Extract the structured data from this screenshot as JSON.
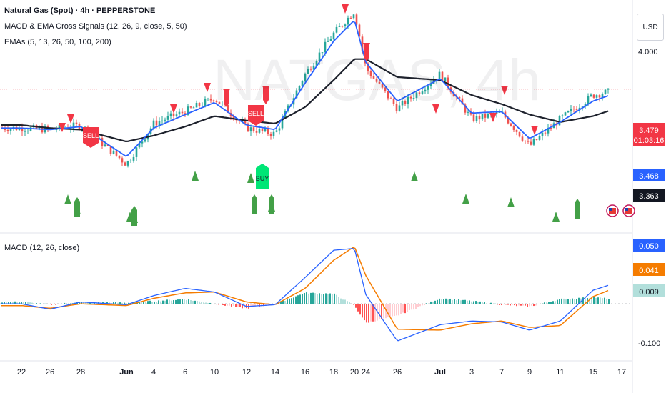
{
  "header": {
    "symbol_title": "Natural Gas (Spot) · 4h · PEPPERSTONE",
    "indicator_macd_ema": "MACD & EMA Cross Signals (12, 26, 9, close, 5, 50)",
    "indicator_emas": "EMAs (5, 13, 26, 50, 100, 200)",
    "watermark": "NATGAS, 4h",
    "currency_button": "USD"
  },
  "price_axis": {
    "top_label": "4.000",
    "current_price": "3.479",
    "countdown": "01:03:16",
    "ema_fast_value": "3.468",
    "ema_slow_value": "3.363"
  },
  "macd_panel": {
    "title": "MACD (12, 26, close)",
    "macd_value": "0.050",
    "signal_value": "0.041",
    "hist_value": "0.009",
    "bottom_label": "-0.100"
  },
  "time_axis": {
    "labels": [
      "22",
      "26",
      "28",
      "Jun",
      "4",
      "6",
      "10",
      "12",
      "14",
      "16",
      "18",
      "20",
      "24",
      "26",
      "Jul",
      "3",
      "7",
      "9",
      "11",
      "15",
      "17"
    ]
  },
  "signals": {
    "sell_label": "SELL",
    "buy_label": "BUY"
  },
  "colors": {
    "up": "#26a69a",
    "down": "#ef5350",
    "ema_fast": "#2962ff",
    "ema_slow": "#1e222d",
    "macd": "#2962ff",
    "signal": "#f57c00",
    "sell_marker": "#f23645",
    "buy_marker": "#43a047",
    "buy_box": "#00e676"
  },
  "chart_data": [
    {
      "type": "line",
      "title": "Natural Gas (Spot) · 4h · PEPPERSTONE",
      "x": [
        "22",
        "26",
        "28",
        "Jun",
        "4",
        "6",
        "10",
        "12",
        "14",
        "16",
        "18",
        "20",
        "24",
        "26",
        "Jul",
        "3",
        "7",
        "9",
        "11",
        "15",
        "17"
      ],
      "ylim": [
        2.55,
        4.05
      ],
      "series": [
        {
          "name": "close",
          "values": [
            3.22,
            3.21,
            3.24,
            2.98,
            3.25,
            3.33,
            3.42,
            3.22,
            3.18,
            3.58,
            3.85,
            4.0,
            3.62,
            3.35,
            3.58,
            3.28,
            3.32,
            3.1,
            3.28,
            3.44,
            3.48
          ]
        },
        {
          "name": "ema_fast",
          "values": [
            3.22,
            3.21,
            3.23,
            3.03,
            3.22,
            3.31,
            3.39,
            3.24,
            3.21,
            3.52,
            3.8,
            3.94,
            3.66,
            3.4,
            3.55,
            3.32,
            3.33,
            3.15,
            3.26,
            3.4,
            3.468
          ]
        },
        {
          "name": "ema_slow",
          "values": [
            3.24,
            3.22,
            3.21,
            3.13,
            3.17,
            3.23,
            3.3,
            3.27,
            3.25,
            3.36,
            3.54,
            3.68,
            3.68,
            3.56,
            3.54,
            3.44,
            3.38,
            3.31,
            3.26,
            3.3,
            3.363
          ]
        }
      ]
    },
    {
      "type": "bar",
      "title": "MACD (12, 26, close)",
      "x": [
        "22",
        "26",
        "28",
        "Jun",
        "4",
        "6",
        "10",
        "12",
        "14",
        "16",
        "18",
        "20",
        "24",
        "26",
        "Jul",
        "3",
        "7",
        "9",
        "11",
        "15",
        "17"
      ],
      "ylim": [
        -0.11,
        0.145
      ],
      "series": [
        {
          "name": "macd",
          "values": [
            0.0,
            -0.012,
            0.004,
            -0.002,
            0.018,
            0.034,
            0.026,
            -0.006,
            -0.002,
            0.058,
            0.118,
            0.122,
            0.02,
            -0.082,
            -0.046,
            -0.038,
            -0.04,
            -0.058,
            -0.038,
            0.03,
            0.05
          ]
        },
        {
          "name": "signal",
          "values": [
            -0.004,
            -0.01,
            0.0,
            -0.004,
            0.012,
            0.024,
            0.026,
            0.004,
            -0.002,
            0.034,
            0.096,
            0.126,
            0.062,
            -0.056,
            -0.058,
            -0.044,
            -0.038,
            -0.052,
            -0.048,
            0.016,
            0.041
          ]
        },
        {
          "name": "histogram",
          "values": [
            0.004,
            -0.002,
            0.004,
            0.002,
            0.006,
            0.01,
            0.0,
            -0.01,
            0.0,
            0.024,
            0.022,
            -0.004,
            -0.042,
            -0.026,
            0.012,
            0.006,
            -0.002,
            -0.006,
            0.01,
            0.014,
            0.009
          ]
        }
      ]
    }
  ]
}
